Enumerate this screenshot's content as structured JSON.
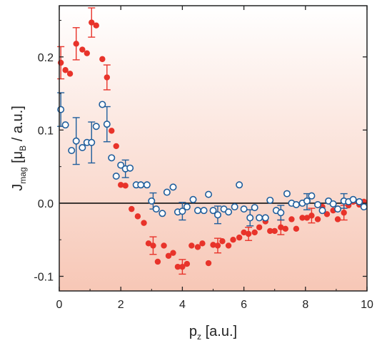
{
  "chart_data": {
    "type": "scatter",
    "xlabel": {
      "main": "p",
      "sub": "z",
      "rest": " [a.u.]"
    },
    "ylabel": {
      "main": "J",
      "sub": "mag",
      "mid": " [μ",
      "sub2": "B",
      "rest": " / a.u.]"
    },
    "xlim": [
      0,
      10
    ],
    "ylim": [
      -0.12,
      0.27
    ],
    "xticks": [
      0,
      2,
      4,
      6,
      8,
      10
    ],
    "yticks": [
      -0.1,
      0.0,
      0.1,
      0.2
    ],
    "ytick_labels": [
      "-0.1",
      "0.0",
      "0.1",
      "0.2"
    ],
    "zero_line": true,
    "grid": false,
    "background_gradient": {
      "top": "#ffffff",
      "bottom": "#f7c7b6"
    },
    "series": [
      {
        "marker": "filled-circle",
        "color": "#e8332a",
        "x": [
          0.05,
          0.2,
          0.35,
          0.55,
          0.75,
          0.9,
          1.05,
          1.2,
          1.4,
          1.55,
          1.7,
          1.85,
          2.0,
          2.15,
          2.35,
          2.55,
          2.75,
          2.9,
          3.05,
          3.2,
          3.4,
          3.55,
          3.7,
          3.85,
          4.0,
          4.15,
          4.3,
          4.5,
          4.65,
          4.85,
          5.0,
          5.15,
          5.3,
          5.5,
          5.65,
          5.85,
          6.0,
          6.15,
          6.35,
          6.5,
          6.7,
          6.85,
          7.0,
          7.2,
          7.35,
          7.55,
          7.7,
          7.9,
          8.05,
          8.2,
          8.4,
          8.55,
          8.7,
          8.9,
          9.05,
          9.25,
          9.4,
          9.55,
          9.75,
          9.9
        ],
        "y": [
          0.192,
          0.182,
          0.177,
          0.218,
          0.21,
          0.205,
          0.247,
          0.243,
          0.197,
          0.172,
          0.099,
          0.078,
          0.025,
          0.024,
          -0.008,
          -0.018,
          -0.027,
          -0.055,
          -0.058,
          -0.08,
          -0.058,
          -0.072,
          -0.068,
          -0.087,
          -0.087,
          -0.083,
          -0.058,
          -0.06,
          -0.055,
          -0.082,
          -0.057,
          -0.058,
          -0.052,
          -0.058,
          -0.05,
          -0.047,
          -0.04,
          -0.042,
          -0.04,
          -0.033,
          -0.025,
          -0.038,
          -0.038,
          -0.033,
          -0.035,
          -0.022,
          -0.035,
          -0.02,
          -0.02,
          -0.017,
          -0.022,
          -0.005,
          -0.015,
          -0.01,
          -0.022,
          -0.013,
          -0.003,
          0.002,
          -0.002,
          0.002
        ],
        "errorbars": [
          {
            "x": 0.05,
            "lo": 0.17,
            "hi": 0.214
          },
          {
            "x": 0.55,
            "lo": 0.196,
            "hi": 0.24
          },
          {
            "x": 1.05,
            "lo": 0.227,
            "hi": 0.267
          },
          {
            "x": 1.55,
            "lo": 0.155,
            "hi": 0.189
          },
          {
            "x": 3.05,
            "lo": -0.07,
            "hi": -0.046
          },
          {
            "x": 4.0,
            "lo": -0.097,
            "hi": -0.077
          },
          {
            "x": 5.15,
            "lo": -0.068,
            "hi": -0.048
          },
          {
            "x": 6.15,
            "lo": -0.051,
            "hi": -0.033
          },
          {
            "x": 7.2,
            "lo": -0.043,
            "hi": -0.023
          },
          {
            "x": 8.2,
            "lo": -0.027,
            "hi": -0.007
          },
          {
            "x": 9.25,
            "lo": -0.023,
            "hi": -0.003
          }
        ]
      },
      {
        "marker": "open-circle",
        "color": "#1f5e9c",
        "x": [
          0.05,
          0.2,
          0.4,
          0.55,
          0.75,
          0.9,
          1.05,
          1.2,
          1.4,
          1.55,
          1.7,
          1.85,
          2.0,
          2.15,
          2.3,
          2.5,
          2.65,
          2.85,
          3.0,
          3.15,
          3.35,
          3.5,
          3.7,
          3.85,
          4.0,
          4.15,
          4.35,
          4.5,
          4.7,
          4.85,
          5.0,
          5.15,
          5.35,
          5.5,
          5.7,
          5.85,
          6.0,
          6.2,
          6.35,
          6.5,
          6.7,
          6.85,
          7.05,
          7.2,
          7.4,
          7.55,
          7.7,
          7.9,
          8.05,
          8.2,
          8.4,
          8.55,
          8.75,
          8.9,
          9.05,
          9.25,
          9.4,
          9.55,
          9.75,
          9.9
        ],
        "y": [
          0.128,
          0.107,
          0.072,
          0.085,
          0.076,
          0.083,
          0.083,
          0.105,
          0.135,
          0.108,
          0.062,
          0.037,
          0.052,
          0.047,
          0.048,
          0.025,
          0.025,
          0.025,
          0.003,
          -0.008,
          -0.014,
          0.015,
          0.022,
          -0.012,
          -0.011,
          -0.005,
          0.005,
          -0.01,
          -0.01,
          0.012,
          -0.01,
          -0.016,
          -0.008,
          -0.012,
          -0.005,
          0.025,
          -0.008,
          -0.02,
          -0.006,
          -0.02,
          -0.02,
          0.004,
          -0.01,
          -0.013,
          0.013,
          0.0,
          -0.002,
          0.0,
          0.003,
          0.01,
          -0.002,
          -0.01,
          0.003,
          -0.001,
          -0.008,
          0.003,
          0.002,
          0.005,
          0.002,
          -0.005
        ],
        "errorbars": [
          {
            "x": 0.05,
            "lo": 0.105,
            "hi": 0.151
          },
          {
            "x": 0.55,
            "lo": 0.053,
            "hi": 0.117
          },
          {
            "x": 1.05,
            "lo": 0.055,
            "hi": 0.111
          },
          {
            "x": 1.55,
            "lo": 0.084,
            "hi": 0.132
          },
          {
            "x": 2.15,
            "lo": 0.035,
            "hi": 0.059
          },
          {
            "x": 3.05,
            "lo": -0.008,
            "hi": 0.014
          },
          {
            "x": 4.0,
            "lo": -0.023,
            "hi": 0.001
          },
          {
            "x": 5.15,
            "lo": -0.028,
            "hi": -0.004
          },
          {
            "x": 6.2,
            "lo": -0.031,
            "hi": -0.009
          },
          {
            "x": 7.2,
            "lo": -0.023,
            "hi": -0.003
          },
          {
            "x": 8.05,
            "lo": -0.009,
            "hi": 0.013
          },
          {
            "x": 9.25,
            "lo": -0.007,
            "hi": 0.013
          }
        ]
      }
    ]
  }
}
